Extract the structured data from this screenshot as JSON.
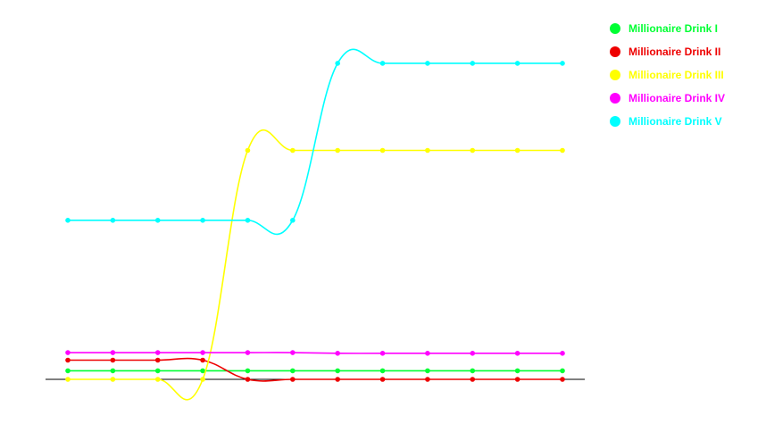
{
  "chart_data": {
    "type": "line",
    "x": [
      1,
      2,
      3,
      4,
      5,
      6,
      7,
      8,
      9,
      10,
      11,
      12
    ],
    "ylim": [
      0,
      100
    ],
    "grid": false,
    "legend": "right",
    "series": [
      {
        "name": "Millionaire Drink I",
        "color": "#00ff33",
        "values": [
          2.5,
          2.5,
          2.5,
          2.5,
          2.5,
          2.5,
          2.5,
          2.5,
          2.5,
          2.5,
          2.5,
          2.5
        ]
      },
      {
        "name": "Millionaire Drink II",
        "color": "#ee0000",
        "values": [
          5.6,
          5.6,
          5.6,
          5.6,
          0,
          0,
          0,
          0,
          0,
          0,
          0,
          0
        ]
      },
      {
        "name": "Millionaire Drink III",
        "color": "#ffff00",
        "values": [
          0,
          0,
          0,
          0,
          66.8,
          66.8,
          66.8,
          66.8,
          66.8,
          66.8,
          66.8,
          66.8
        ]
      },
      {
        "name": "Millionaire Drink IV",
        "color": "#ff00ff",
        "values": [
          7.8,
          7.8,
          7.8,
          7.8,
          7.8,
          7.8,
          7.6,
          7.6,
          7.6,
          7.6,
          7.6,
          7.6
        ]
      },
      {
        "name": "Millionaire Drink V",
        "color": "#00ffff",
        "values": [
          46.4,
          46.4,
          46.4,
          46.4,
          46.4,
          46.4,
          92.2,
          92.2,
          92.2,
          92.2,
          92.2,
          92.2
        ]
      }
    ]
  }
}
